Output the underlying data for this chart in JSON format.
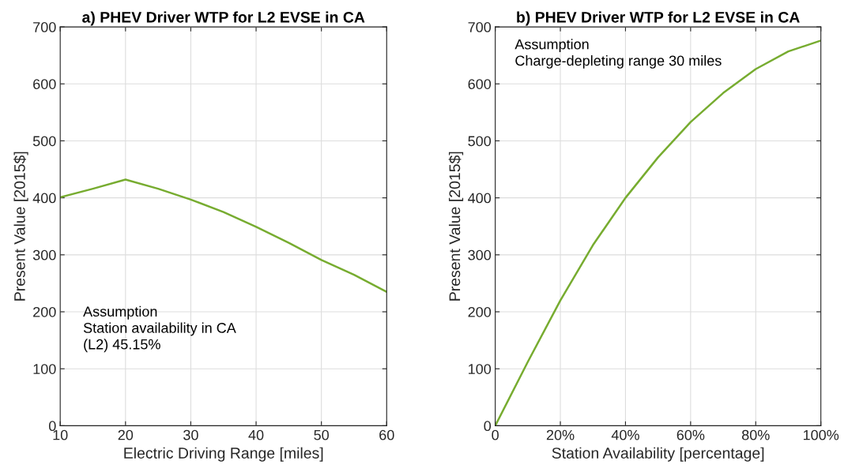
{
  "chart_data": [
    {
      "type": "line",
      "title": "a) PHEV Driver WTP for L2 EVSE in CA",
      "xlabel": "Electric Driving Range [miles]",
      "ylabel": "Present Value [2015$]",
      "x": [
        10,
        15,
        20,
        25,
        30,
        35,
        40,
        45,
        50,
        55,
        60
      ],
      "series": [
        {
          "color": "#77ac30",
          "values": [
            401,
            416,
            432,
            416,
            397,
            375,
            349,
            321,
            291,
            265,
            235
          ]
        }
      ],
      "xlim": [
        10,
        60
      ],
      "xticks": [
        10,
        20,
        30,
        40,
        50,
        60
      ],
      "ylim": [
        0,
        700
      ],
      "yticks": [
        0,
        100,
        200,
        300,
        400,
        500,
        600,
        700
      ],
      "grid": true,
      "annotations": [
        "Assumption\nStation availability in CA\n(L2) 45.15%"
      ]
    },
    {
      "type": "line",
      "title": "b) PHEV Driver WTP for L2 EVSE in CA",
      "xlabel": "Station Availability [percentage]",
      "ylabel": "Present Value [2015$]",
      "x": [
        0,
        10,
        20,
        30,
        40,
        50,
        60,
        70,
        80,
        90,
        100
      ],
      "series": [
        {
          "color": "#77ac30",
          "values": [
            0,
            112,
            220,
            317,
            400,
            471,
            533,
            584,
            626,
            657,
            676
          ]
        }
      ],
      "xlim": [
        0,
        100
      ],
      "xticks": [
        0,
        {
          "value": 20,
          "label": "20%"
        },
        {
          "value": 40,
          "label": "40%"
        },
        {
          "value": 60,
          "label": "60%"
        },
        {
          "value": 80,
          "label": "80%"
        },
        {
          "value": 100,
          "label": "100%"
        }
      ],
      "ylim": [
        0,
        700
      ],
      "yticks": [
        0,
        100,
        200,
        300,
        400,
        500,
        600,
        700
      ],
      "grid": true,
      "annotations": [
        "Assumption\nCharge-depleting range 30 miles"
      ]
    }
  ]
}
